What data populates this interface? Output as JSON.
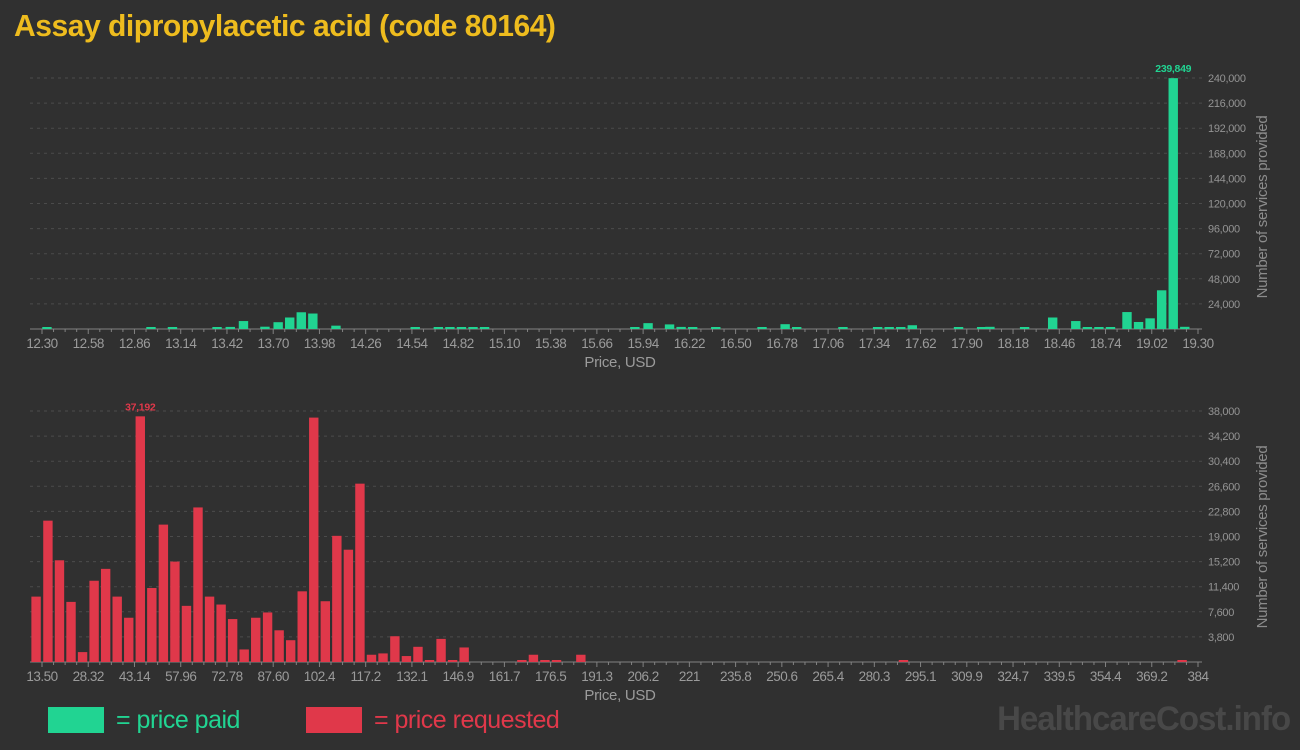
{
  "title": "Assay dipropylacetic acid (code 80164)",
  "watermark": "HealthcareCost.info",
  "legend": {
    "paid_label": "= price paid",
    "requested_label": "= price requested"
  },
  "colors": {
    "background": "#303030",
    "paid": "#21d492",
    "requested": "#e0384a",
    "title": "#eebc1e",
    "axis_text": "#9b9b9b",
    "grid": "#4b4b4b",
    "axis_line": "#828282",
    "watermark": "#484848"
  },
  "chart_data": [
    {
      "type": "bar",
      "name": "price paid",
      "color": "#21d492",
      "xlabel": "Price, USD",
      "ylabel": "Number of services provided",
      "legend_position": "bottom",
      "grid": true,
      "xlim": [
        12.3,
        19.3
      ],
      "ylim": [
        0,
        240000
      ],
      "y_max": 240000,
      "y_tick_labels": [
        "24,000",
        "48,000",
        "72,000",
        "96,000",
        "120,000",
        "144,000",
        "168,000",
        "192,000",
        "216,000",
        "240,000"
      ],
      "x_tick_labels": [
        "12.30",
        "12.58",
        "12.86",
        "13.14",
        "13.42",
        "13.70",
        "13.98",
        "14.26",
        "14.54",
        "14.82",
        "15.10",
        "15.38",
        "15.66",
        "15.94",
        "16.22",
        "16.50",
        "16.78",
        "17.06",
        "17.34",
        "17.62",
        "17.90",
        "18.18",
        "18.46",
        "18.74",
        "19.02",
        "19.30"
      ],
      "peak_label": "239,849",
      "bars": [
        [
          12.33,
          1600
        ],
        [
          12.96,
          1300
        ],
        [
          13.09,
          1100
        ],
        [
          13.36,
          1800
        ],
        [
          13.44,
          2000
        ],
        [
          13.52,
          7600
        ],
        [
          13.65,
          2200
        ],
        [
          13.73,
          6500
        ],
        [
          13.8,
          11000
        ],
        [
          13.87,
          16000
        ],
        [
          13.94,
          14800
        ],
        [
          14.08,
          3200
        ],
        [
          14.56,
          1500
        ],
        [
          14.7,
          1300
        ],
        [
          14.77,
          1300
        ],
        [
          14.84,
          1300
        ],
        [
          14.91,
          1300
        ],
        [
          14.98,
          1300
        ],
        [
          15.89,
          1800
        ],
        [
          15.97,
          5600
        ],
        [
          16.1,
          4400
        ],
        [
          16.17,
          2000
        ],
        [
          16.24,
          1800
        ],
        [
          16.38,
          1500
        ],
        [
          16.66,
          1500
        ],
        [
          16.8,
          4600
        ],
        [
          16.87,
          1800
        ],
        [
          17.15,
          1500
        ],
        [
          17.36,
          1700
        ],
        [
          17.43,
          1700
        ],
        [
          17.5,
          1700
        ],
        [
          17.57,
          3600
        ],
        [
          17.85,
          1500
        ],
        [
          17.99,
          1500
        ],
        [
          18.04,
          2100
        ],
        [
          18.25,
          1500
        ],
        [
          18.42,
          11000
        ],
        [
          18.56,
          7600
        ],
        [
          18.63,
          1500
        ],
        [
          18.7,
          1300
        ],
        [
          18.77,
          1300
        ],
        [
          18.87,
          16200
        ],
        [
          18.94,
          6700
        ],
        [
          19.01,
          10200
        ],
        [
          19.08,
          37000
        ],
        [
          19.15,
          239849
        ],
        [
          19.22,
          2100
        ]
      ]
    },
    {
      "type": "bar",
      "name": "price requested",
      "color": "#e0384a",
      "xlabel": "Price, USD",
      "ylabel": "Number of services provided",
      "legend_position": "bottom",
      "grid": true,
      "xlim": [
        13.5,
        384
      ],
      "ylim": [
        0,
        38000
      ],
      "y_max": 38000,
      "y_tick_labels": [
        "3,800",
        "7,600",
        "11,400",
        "15,200",
        "19,000",
        "22,800",
        "26,600",
        "30,400",
        "34,200",
        "38,000"
      ],
      "x_tick_labels": [
        "13.50",
        "28.32",
        "43.14",
        "57.96",
        "72.78",
        "87.60",
        "102.4",
        "117.2",
        "132.1",
        "146.9",
        "161.7",
        "176.5",
        "191.3",
        "206.2",
        "221",
        "235.8",
        "250.6",
        "265.4",
        "280.3",
        "295.1",
        "309.9",
        "324.7",
        "339.5",
        "354.4",
        "369.2",
        "384"
      ],
      "peak_label": "37,192",
      "bars": [
        [
          11.6,
          9900
        ],
        [
          15.4,
          21400
        ],
        [
          19.1,
          15400
        ],
        [
          22.8,
          9100
        ],
        [
          26.5,
          1500
        ],
        [
          30.2,
          12300
        ],
        [
          33.9,
          14100
        ],
        [
          37.6,
          9900
        ],
        [
          41.3,
          6700
        ],
        [
          45.0,
          37192
        ],
        [
          48.7,
          11200
        ],
        [
          52.4,
          20800
        ],
        [
          56.1,
          15200
        ],
        [
          59.8,
          8500
        ],
        [
          63.5,
          23400
        ],
        [
          67.2,
          9900
        ],
        [
          70.9,
          8700
        ],
        [
          74.6,
          6500
        ],
        [
          78.3,
          1900
        ],
        [
          82.0,
          6700
        ],
        [
          85.8,
          7500
        ],
        [
          89.5,
          4800
        ],
        [
          93.2,
          3300
        ],
        [
          96.9,
          10700
        ],
        [
          100.6,
          37000
        ],
        [
          104.3,
          9200
        ],
        [
          108.0,
          19100
        ],
        [
          111.7,
          17000
        ],
        [
          115.4,
          27000
        ],
        [
          119.1,
          1100
        ],
        [
          122.8,
          1300
        ],
        [
          126.6,
          3900
        ],
        [
          130.3,
          900
        ],
        [
          134.0,
          2300
        ],
        [
          137.7,
          250
        ],
        [
          141.4,
          3500
        ],
        [
          145.1,
          200
        ],
        [
          148.8,
          2200
        ],
        [
          167.3,
          300
        ],
        [
          171.0,
          1100
        ],
        [
          174.7,
          300
        ],
        [
          178.4,
          300
        ],
        [
          186.2,
          1100
        ],
        [
          289.6,
          250
        ],
        [
          378.9,
          250
        ]
      ]
    }
  ]
}
